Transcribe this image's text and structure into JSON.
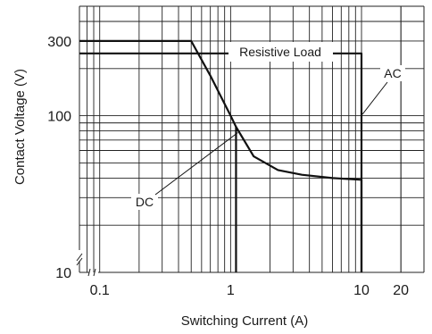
{
  "chart_data": {
    "type": "line",
    "title": "",
    "xlabel": "Switching Current (A)",
    "ylabel": "Contact Voltage (V)",
    "x_scale": "log",
    "y_scale": "log",
    "xlim": [
      0.07,
      30
    ],
    "ylim": [
      10,
      500
    ],
    "grid": true,
    "x_tick_labels": [
      {
        "value": 0.1,
        "label": "0.1"
      },
      {
        "value": 1,
        "label": "1"
      },
      {
        "value": 10,
        "label": "10"
      },
      {
        "value": 20,
        "label": "20"
      }
    ],
    "y_tick_labels": [
      {
        "value": 10,
        "label": "10"
      },
      {
        "value": 100,
        "label": "100"
      },
      {
        "value": 300,
        "label": "300"
      }
    ],
    "annotations": [
      {
        "text": "Resistive Load"
      },
      {
        "text": "AC"
      },
      {
        "text": "DC"
      }
    ],
    "series": [
      {
        "name": "AC",
        "x": [
          0.07,
          10,
          10
        ],
        "y": [
          250,
          250,
          10
        ]
      },
      {
        "name": "DC",
        "x": [
          0.07,
          0.5,
          0.7,
          1.0,
          1.1,
          1.5,
          2.3,
          3.5,
          6,
          10,
          10
        ],
        "y": [
          300,
          300,
          180,
          100,
          85,
          55,
          45,
          42,
          40,
          39,
          10
        ]
      }
    ],
    "boundary": {
      "x": [
        1.1,
        1.1
      ],
      "y": [
        10,
        85
      ]
    }
  }
}
